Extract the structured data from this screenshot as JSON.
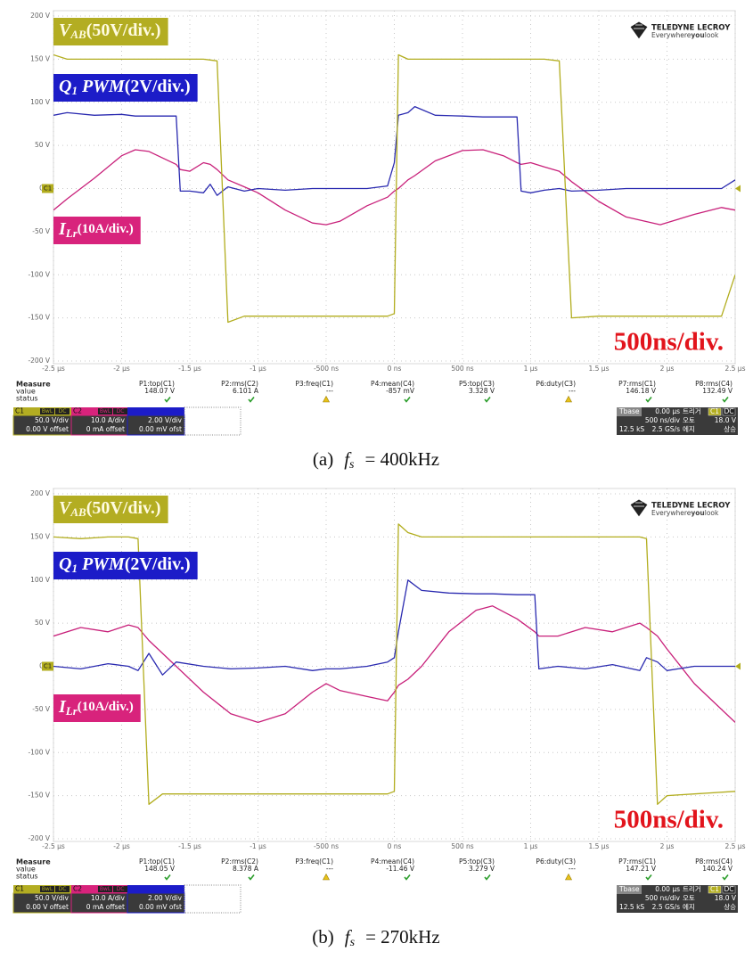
{
  "chart_data": [
    {
      "type": "line",
      "xlim": [
        -2.5,
        2.5
      ],
      "ylim": [
        -200,
        200
      ],
      "xticks": [
        {
          "value": -2.5,
          "label": "-2.5 µs"
        },
        {
          "value": -2,
          "label": "-2 µs"
        },
        {
          "value": -1.5,
          "label": "-1.5 µs"
        },
        {
          "value": -1,
          "label": "-1 µs"
        },
        {
          "value": -0.5,
          "label": "-500 ns"
        },
        {
          "value": 0,
          "label": "0 ns"
        },
        {
          "value": 0.5,
          "label": "500 ns"
        },
        {
          "value": 1,
          "label": "1 µs"
        },
        {
          "value": 1.5,
          "label": "1.5 µs"
        },
        {
          "value": 2,
          "label": "2 µs"
        },
        {
          "value": 2.5,
          "label": "2.5 µs"
        }
      ],
      "yticks": [
        {
          "value": 200,
          "label": "200 V"
        },
        {
          "value": 150,
          "label": "150 V"
        },
        {
          "value": 100,
          "label": "100 V"
        },
        {
          "value": 50,
          "label": "50 V"
        },
        {
          "value": 0,
          "label": "0.0"
        },
        {
          "value": -50,
          "label": "-50 V"
        },
        {
          "value": -100,
          "label": "-100 V"
        },
        {
          "value": -150,
          "label": "-150 V"
        },
        {
          "value": -200,
          "label": "-200 V"
        }
      ],
      "grid": true,
      "x": [
        -2.5,
        -2.4,
        -2.2,
        -2.0,
        -1.9,
        -1.8,
        -1.6,
        -1.57,
        -1.5,
        -1.4,
        -1.35,
        -1.3,
        -1.22,
        -1.1,
        -1.0,
        -0.8,
        -0.6,
        -0.5,
        -0.4,
        -0.2,
        -0.05,
        0,
        0.03,
        0.1,
        0.15,
        0.3,
        0.5,
        0.65,
        0.8,
        0.9,
        0.93,
        1.0,
        1.1,
        1.21,
        1.3,
        1.5,
        1.7,
        1.95,
        2.2,
        2.4,
        2.5
      ],
      "series": [
        {
          "name": [
            {
              "text": "V",
              "style": "italic"
            },
            {
              "text": "AB",
              "style": "sub"
            },
            {
              "text": "(50V/div.)",
              "style": "normal"
            }
          ],
          "color": "#b2ad1e",
          "label_bg": "#b3ad22",
          "label_color": "#fffbe0",
          "values": [
            155,
            150,
            150,
            150,
            150,
            150,
            150,
            150,
            150,
            150,
            149,
            148,
            -155,
            -148,
            -148,
            -148,
            -148,
            -148,
            -148,
            -148,
            -148,
            -145,
            155,
            150,
            150,
            150,
            150,
            150,
            150,
            150,
            150,
            150,
            150,
            148,
            -150,
            -148,
            -148,
            -148,
            -148,
            -148,
            -100
          ]
        },
        {
          "name": [
            {
              "text": "Q",
              "style": "italic"
            },
            {
              "text": "1",
              "style": "sub"
            },
            {
              "text": " PWM",
              "style": "italic"
            },
            {
              "text": "(2V/div.)",
              "style": "normal"
            }
          ],
          "color": "#2a2ab0",
          "label_bg": "#1c1cc8",
          "label_color": "#ffffff",
          "values": [
            85,
            88,
            85,
            86,
            84,
            84,
            84,
            -3,
            -3,
            -5,
            5,
            -8,
            2,
            -3,
            0,
            -2,
            0,
            0,
            0,
            0,
            3,
            30,
            85,
            88,
            95,
            85,
            84,
            83,
            83,
            83,
            -3,
            -5,
            -2,
            0,
            -3,
            -2,
            0,
            0,
            0,
            0,
            10
          ]
        },
        {
          "name": [
            {
              "text": "I",
              "style": "italic"
            },
            {
              "text": "Lr",
              "style": "sub"
            },
            {
              "text": "(10A/div.)",
              "style": "small"
            }
          ],
          "color": "#c8207a",
          "label_bg": "#d8237c",
          "label_color": "#ffffff",
          "values": [
            -25,
            -12,
            12,
            38,
            45,
            43,
            28,
            22,
            20,
            30,
            28,
            22,
            10,
            2,
            -5,
            -25,
            -40,
            -42,
            -38,
            -20,
            -10,
            -3,
            0,
            10,
            15,
            32,
            44,
            45,
            38,
            30,
            28,
            30,
            25,
            20,
            8,
            -15,
            -33,
            -42,
            -30,
            -22,
            -25
          ]
        }
      ],
      "channel_marker": "C1",
      "annotation": "500ns/div.",
      "logo": {
        "brand": "TELEDYNE LECROY",
        "tagline": [
          "Everywhere",
          "you",
          "look"
        ]
      },
      "measurements": {
        "title": "Measure",
        "row_labels": [
          "value",
          "status"
        ],
        "headers": [
          "P1:top(C1)",
          "P2:rms(C2)",
          "P3:freq(C1)",
          "P4:mean(C4)",
          "P5:top(C3)",
          "P6:duty(C3)",
          "P7:rms(C1)",
          "P8:rms(C4)"
        ],
        "values": [
          "148.07 V",
          "6.101 A",
          "---",
          "-857 mV",
          "3.328 V",
          "---",
          "146.18 V",
          "132.49 V"
        ],
        "status": [
          "ok",
          "ok",
          "warn",
          "ok",
          "ok",
          "warn",
          "ok",
          "ok"
        ]
      },
      "channels": [
        {
          "name": "C1",
          "tags": [
            "BwL",
            "DC"
          ],
          "color": "#b3ad22",
          "lines": [
            "50.0 V/div",
            "0.00 V offset"
          ]
        },
        {
          "name": "C2",
          "tags": [
            "BwL",
            "DC"
          ],
          "color": "#d8237c",
          "lines": [
            "10.0 A/div",
            "0 mA offset"
          ]
        },
        {
          "tags": [],
          "color": "#1c1cc8",
          "lines": [
            "2.00 V/div",
            "0.00 mV ofst"
          ]
        }
      ],
      "timebase": [
        [
          "Tbase",
          "0.00 µs",
          "트리거",
          "C1",
          "DC"
        ],
        [
          "500 ns/div",
          "오토",
          "18.0 V"
        ],
        [
          "12.5 kS",
          "2.5 GS/s",
          "에지",
          "상승"
        ]
      ],
      "caption": {
        "label": "(a)",
        "symbol": "f",
        "subscript": "s",
        "text": "=  400kHz"
      }
    },
    {
      "type": "line",
      "xlim": [
        -2.5,
        2.5
      ],
      "ylim": [
        -200,
        200
      ],
      "xticks": [
        {
          "value": -2.5,
          "label": "-2.5 µs"
        },
        {
          "value": -2,
          "label": "-2 µs"
        },
        {
          "value": -1.5,
          "label": "-1.5 µs"
        },
        {
          "value": -1,
          "label": "-1 µs"
        },
        {
          "value": -0.5,
          "label": "-500 ns"
        },
        {
          "value": 0,
          "label": "0 ns"
        },
        {
          "value": 0.5,
          "label": "500 ns"
        },
        {
          "value": 1,
          "label": "1 µs"
        },
        {
          "value": 1.5,
          "label": "1.5 µs"
        },
        {
          "value": 2,
          "label": "2 µs"
        },
        {
          "value": 2.5,
          "label": "2.5 µs"
        }
      ],
      "yticks": [
        {
          "value": 200,
          "label": "200 V"
        },
        {
          "value": 150,
          "label": "150 V"
        },
        {
          "value": 100,
          "label": "100 V"
        },
        {
          "value": 50,
          "label": "50 V"
        },
        {
          "value": 0,
          "label": "0.0"
        },
        {
          "value": -50,
          "label": "-50 V"
        },
        {
          "value": -100,
          "label": "-100 V"
        },
        {
          "value": -150,
          "label": "-150 V"
        },
        {
          "value": -200,
          "label": "-200 V"
        }
      ],
      "grid": true,
      "x": [
        -2.5,
        -2.3,
        -2.1,
        -1.95,
        -1.88,
        -1.8,
        -1.7,
        -1.6,
        -1.4,
        -1.2,
        -1.0,
        -0.8,
        -0.6,
        -0.5,
        -0.4,
        -0.2,
        -0.05,
        0,
        0.03,
        0.1,
        0.2,
        0.4,
        0.6,
        0.72,
        0.9,
        1.03,
        1.06,
        1.2,
        1.4,
        1.6,
        1.8,
        1.85,
        1.93,
        2.0,
        2.2,
        2.5
      ],
      "series": [
        {
          "name": [
            {
              "text": "V",
              "style": "italic"
            },
            {
              "text": "AB",
              "style": "sub"
            },
            {
              "text": "(50V/div.)",
              "style": "normal"
            }
          ],
          "color": "#b2ad1e",
          "label_bg": "#b3ad22",
          "label_color": "#fffbe0",
          "values": [
            150,
            148,
            150,
            150,
            148,
            -160,
            -148,
            -148,
            -148,
            -148,
            -148,
            -148,
            -148,
            -148,
            -148,
            -148,
            -148,
            -145,
            165,
            155,
            150,
            150,
            150,
            150,
            150,
            150,
            150,
            150,
            150,
            150,
            150,
            148,
            -160,
            -150,
            -148,
            -145
          ]
        },
        {
          "name": [
            {
              "text": "Q",
              "style": "italic"
            },
            {
              "text": "1",
              "style": "sub"
            },
            {
              "text": " PWM",
              "style": "italic"
            },
            {
              "text": "(2V/div.)",
              "style": "normal"
            }
          ],
          "color": "#2a2ab0",
          "label_bg": "#1c1cc8",
          "label_color": "#ffffff",
          "values": [
            0,
            -3,
            3,
            0,
            -5,
            15,
            -10,
            5,
            0,
            -3,
            -2,
            0,
            -5,
            -3,
            -3,
            0,
            5,
            10,
            40,
            100,
            88,
            85,
            84,
            84,
            83,
            83,
            -3,
            0,
            -3,
            2,
            -5,
            10,
            5,
            -5,
            0,
            0
          ]
        },
        {
          "name": [
            {
              "text": "I",
              "style": "italic"
            },
            {
              "text": "Lr",
              "style": "sub"
            },
            {
              "text": "(10A/div.)",
              "style": "small"
            }
          ],
          "color": "#c8207a",
          "label_bg": "#d8237c",
          "label_color": "#ffffff",
          "values": [
            35,
            45,
            40,
            48,
            45,
            30,
            15,
            0,
            -30,
            -55,
            -65,
            -55,
            -30,
            -20,
            -28,
            -35,
            -40,
            -30,
            -22,
            -15,
            0,
            40,
            65,
            70,
            55,
            40,
            35,
            35,
            45,
            40,
            50,
            45,
            35,
            20,
            -20,
            -65
          ]
        }
      ],
      "channel_marker": "C1",
      "annotation": "500ns/div.",
      "logo": {
        "brand": "TELEDYNE LECROY",
        "tagline": [
          "Everywhere",
          "you",
          "look"
        ]
      },
      "measurements": {
        "title": "Measure",
        "row_labels": [
          "value",
          "status"
        ],
        "headers": [
          "P1:top(C1)",
          "P2:rms(C2)",
          "P3:freq(C1)",
          "P4:mean(C4)",
          "P5:top(C3)",
          "P6:duty(C3)",
          "P7:rms(C1)",
          "P8:rms(C4)"
        ],
        "values": [
          "148.05 V",
          "8.378 A",
          "---",
          "-11.46 V",
          "3.279 V",
          "---",
          "147.21 V",
          "140.24 V"
        ],
        "status": [
          "ok",
          "ok",
          "warn",
          "ok",
          "ok",
          "warn",
          "ok",
          "ok"
        ]
      },
      "channels": [
        {
          "name": "C1",
          "tags": [
            "BwL",
            "DC"
          ],
          "color": "#b3ad22",
          "lines": [
            "50.0 V/div",
            "0.00 V offset"
          ]
        },
        {
          "name": "C2",
          "tags": [
            "BwL",
            "DC"
          ],
          "color": "#d8237c",
          "lines": [
            "10.0 A/div",
            "0 mA offset"
          ]
        },
        {
          "tags": [],
          "color": "#1c1cc8",
          "lines": [
            "2.00 V/div",
            "0.00 mV ofst"
          ]
        }
      ],
      "timebase": [
        [
          "Tbase",
          "0.00 µs",
          "트리거",
          "C1",
          "DC"
        ],
        [
          "500 ns/div",
          "오토",
          "18.0 V"
        ],
        [
          "12.5 kS",
          "2.5 GS/s",
          "에지",
          "상승"
        ]
      ],
      "caption": {
        "label": "(b)",
        "symbol": "f",
        "subscript": "s",
        "text": "=  270kHz"
      }
    }
  ]
}
